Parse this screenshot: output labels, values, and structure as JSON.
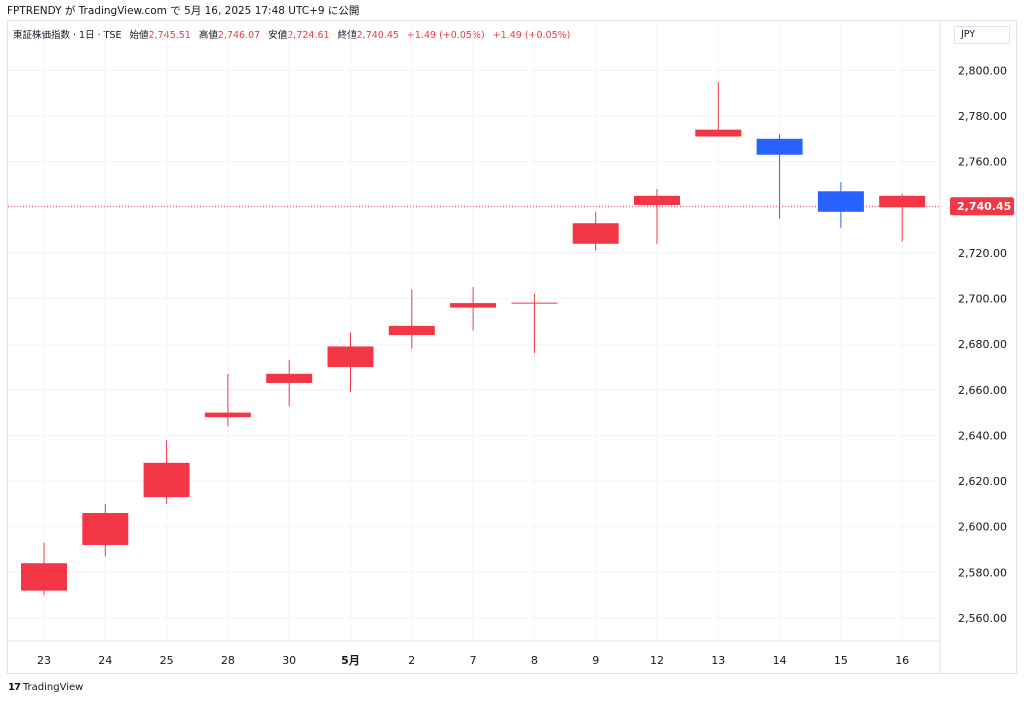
{
  "header": {
    "published": "FPTRENDY が TradingView.com で 5月 16, 2025 17:48 UTC+9 に公開"
  },
  "legend": {
    "symbol": "東証株価指数 · 1日 · TSE",
    "open_label": "始値",
    "open": "2,745.51",
    "high_label": "高値",
    "high": "2,746.07",
    "low_label": "安値",
    "low": "2,724.61",
    "close_label": "終値",
    "close": "2,740.45",
    "change": "+1.49 (+0.05%)",
    "change2": "+1.49 (+0.05%)"
  },
  "currency": "JPY",
  "footer": {
    "brand": "TradingView",
    "logo": "tradingview-logo"
  },
  "colors": {
    "up": "#f23645",
    "down": "#2962ff",
    "grid": "#f0f3fa",
    "price_line": "#f23645"
  },
  "chart_data": {
    "type": "candlestick",
    "ylim": [
      2550,
      2810
    ],
    "y_ticks": [
      2560,
      2580,
      2600,
      2620,
      2640,
      2660,
      2680,
      2700,
      2720,
      2740,
      2760,
      2780,
      2800
    ],
    "y_tick_labels": [
      "2,560.00",
      "2,580.00",
      "2,600.00",
      "2,620.00",
      "2,640.00",
      "2,660.00",
      "2,680.00",
      "2,700.00",
      "2,720.00",
      "2,740.00",
      "2,760.00",
      "2,780.00",
      "2,800.00"
    ],
    "last_price": 2740.45,
    "last_price_label": "2,740.45",
    "categories": [
      "23",
      "24",
      "25",
      "28",
      "30",
      "5月",
      "2",
      "7",
      "8",
      "9",
      "12",
      "13",
      "14",
      "15",
      "16"
    ],
    "bold_categories": [
      "5月"
    ],
    "candles": [
      {
        "o": 2572,
        "h": 2593,
        "l": 2570,
        "c": 2584
      },
      {
        "o": 2592,
        "h": 2610,
        "l": 2587,
        "c": 2606
      },
      {
        "o": 2613,
        "h": 2638,
        "l": 2610,
        "c": 2628
      },
      {
        "o": 2648,
        "h": 2667,
        "l": 2644,
        "c": 2650
      },
      {
        "o": 2663,
        "h": 2673,
        "l": 2653,
        "c": 2667
      },
      {
        "o": 2670,
        "h": 2685,
        "l": 2659,
        "c": 2679
      },
      {
        "o": 2684,
        "h": 2704,
        "l": 2678,
        "c": 2688
      },
      {
        "o": 2696,
        "h": 2705,
        "l": 2686,
        "c": 2698
      },
      {
        "o": 2698,
        "h": 2702,
        "l": 2676,
        "c": 2698
      },
      {
        "o": 2724,
        "h": 2738,
        "l": 2721,
        "c": 2733
      },
      {
        "o": 2741,
        "h": 2748,
        "l": 2724,
        "c": 2745
      },
      {
        "o": 2771,
        "h": 2795,
        "l": 2771,
        "c": 2774
      },
      {
        "o": 2770,
        "h": 2772,
        "l": 2735,
        "c": 2763
      },
      {
        "o": 2747,
        "h": 2751,
        "l": 2731,
        "c": 2738
      },
      {
        "o": 2745,
        "h": 2746,
        "l": 2725,
        "c": 2740
      }
    ],
    "candle_colors": [
      "up",
      "up",
      "up",
      "up",
      "up",
      "up",
      "up",
      "up",
      "up",
      "up",
      "up",
      "up",
      "down",
      "down",
      "up"
    ]
  }
}
